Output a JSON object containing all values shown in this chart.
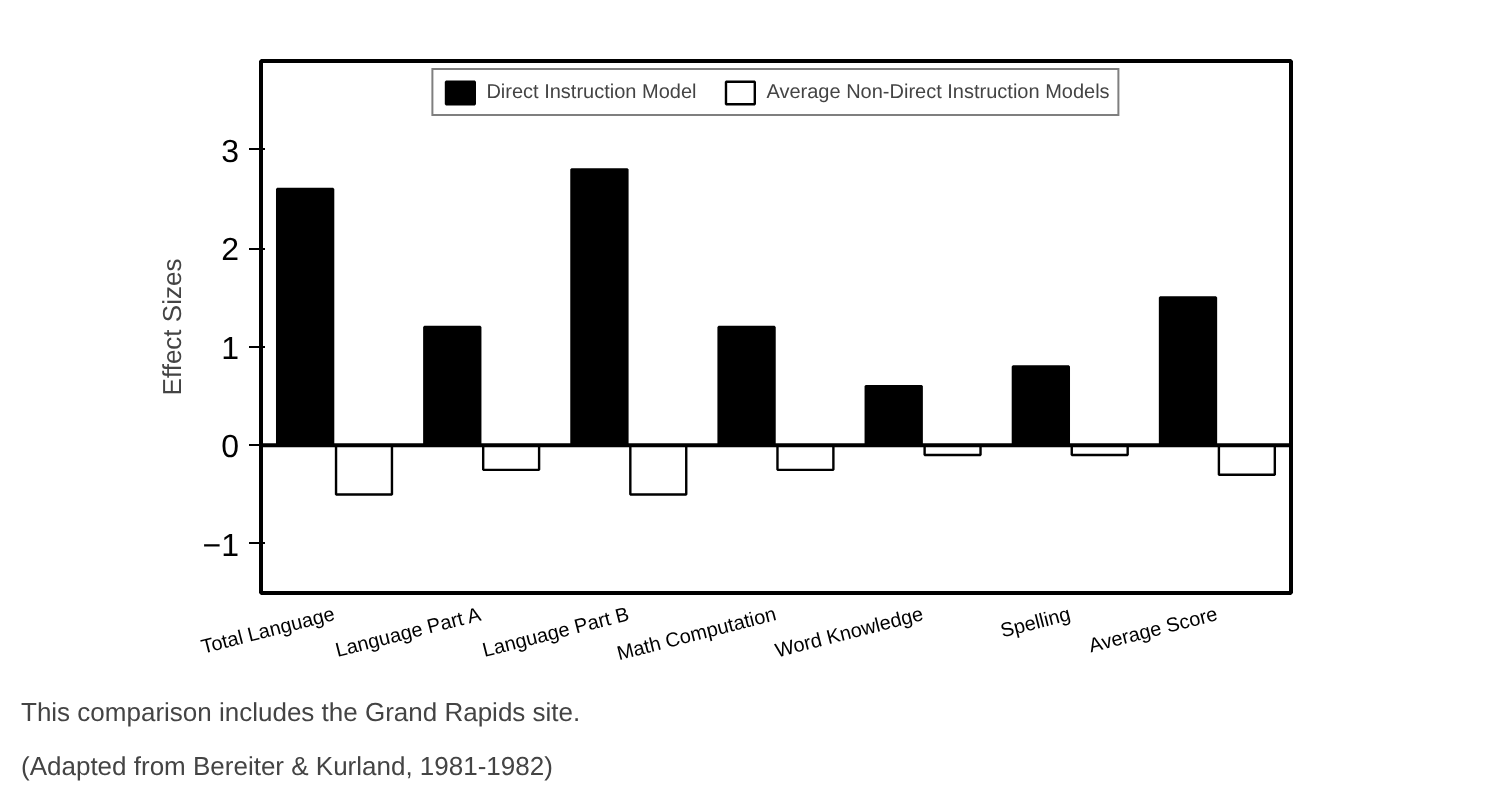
{
  "chart_data": {
    "type": "bar",
    "ylabel": "Effect Sizes",
    "categories": [
      "Total Language",
      "Language Part A",
      "Language Part B",
      "Math Computation",
      "Word Knowledge",
      "Spelling",
      "Average Score"
    ],
    "series": [
      {
        "name": "Direct Instruction Model",
        "color": "#000000",
        "values": [
          2.6,
          1.2,
          2.8,
          1.2,
          0.6,
          0.8,
          1.5
        ]
      },
      {
        "name": "Average Non-Direct Instruction Models",
        "color": "#ffffff",
        "values": [
          -0.5,
          -0.25,
          -0.5,
          -0.25,
          -0.1,
          -0.1,
          -0.3
        ]
      }
    ],
    "ylim": [
      -1.5,
      3.9
    ],
    "yticks": [
      -1,
      0,
      1,
      2,
      3
    ],
    "ref_lines": [
      {
        "axis": "y",
        "value": 0
      }
    ],
    "legend": "top",
    "grid": false,
    "annotations": [
      "This comparison includes the Grand Rapids site.",
      "(Adapted from Bereiter & Kurland, 1981-1982)"
    ]
  }
}
